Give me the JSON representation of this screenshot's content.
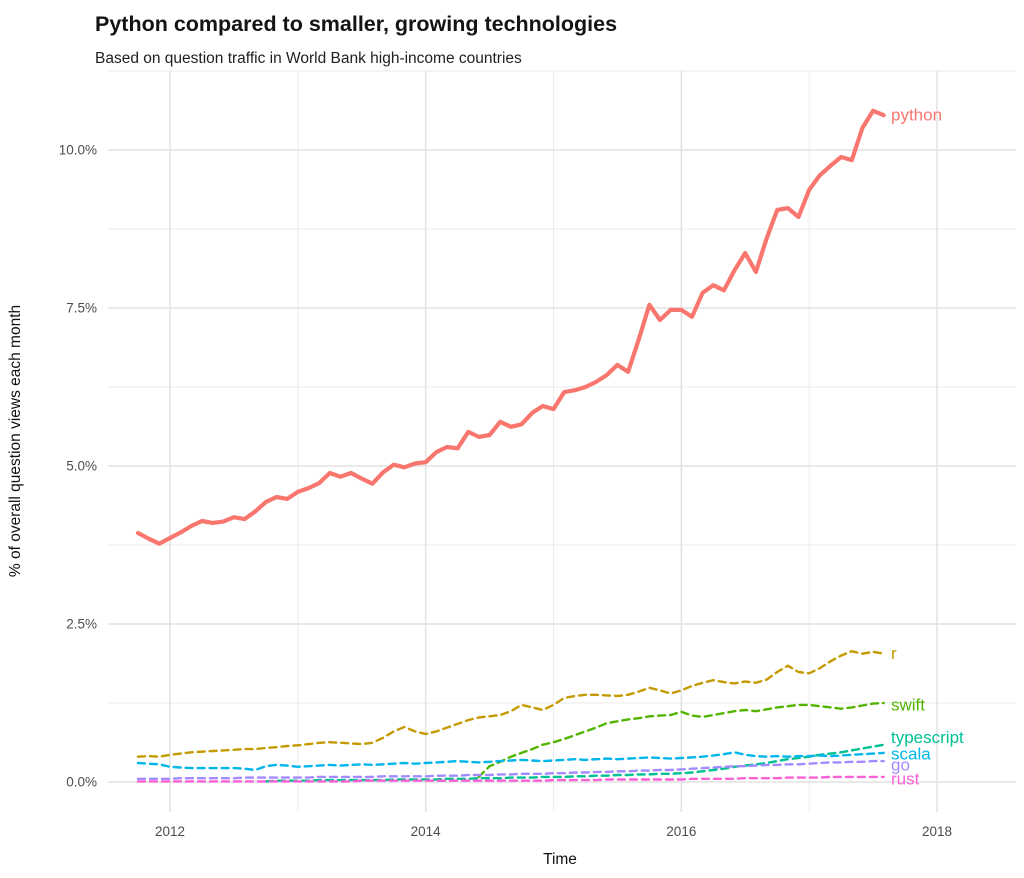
{
  "chart_data": {
    "type": "line",
    "title": "Python compared to smaller, growing technologies",
    "subtitle": "Based on question traffic in World Bank high-income countries",
    "xlabel": "Time",
    "ylabel": "% of overall question views each month",
    "grid": "major and minor gridlines, light gray on white",
    "legend": "direct line labels at right edge",
    "x_start_year": 2011.75,
    "x_step_years": 0.08333,
    "x_range": [
      2011.52,
      2018.62
    ],
    "y_range": [
      -0.5,
      11.25
    ],
    "x_axis": {
      "ticks": [
        {
          "label": "2012",
          "year": 2012
        },
        {
          "label": "2014",
          "year": 2014
        },
        {
          "label": "2016",
          "year": 2016
        },
        {
          "label": "2018",
          "year": 2018
        }
      ],
      "minor_years": [
        2013,
        2015,
        2017
      ]
    },
    "y_axis": {
      "ticks": [
        {
          "label": "0.0%",
          "value": 0
        },
        {
          "label": "2.5%",
          "value": 2.5
        },
        {
          "label": "5.0%",
          "value": 5
        },
        {
          "label": "7.5%",
          "value": 7.5
        },
        {
          "label": "10.0%",
          "value": 10
        }
      ],
      "minor_values": [
        1.25,
        3.75,
        6.25,
        8.75,
        11.25
      ]
    },
    "series": [
      {
        "name": "python",
        "color": "#F8766D",
        "style": "solid",
        "width": 4.2,
        "label_dy": 0,
        "values": [
          3.94,
          3.85,
          3.77,
          3.86,
          3.95,
          4.05,
          4.13,
          4.1,
          4.12,
          4.19,
          4.16,
          4.28,
          4.43,
          4.51,
          4.48,
          4.59,
          4.65,
          4.73,
          4.89,
          4.83,
          4.89,
          4.8,
          4.72,
          4.9,
          5.02,
          4.98,
          5.04,
          5.06,
          5.22,
          5.3,
          5.28,
          5.54,
          5.46,
          5.49,
          5.7,
          5.62,
          5.66,
          5.84,
          5.95,
          5.9,
          6.17,
          6.2,
          6.25,
          6.33,
          6.44,
          6.6,
          6.49,
          7.0,
          7.55,
          7.31,
          7.47,
          7.47,
          7.36,
          7.74,
          7.86,
          7.78,
          8.1,
          8.37,
          8.07,
          8.6,
          9.05,
          9.08,
          8.94,
          9.37,
          9.6,
          9.75,
          9.89,
          9.84,
          10.35,
          10.62,
          10.55
        ]
      },
      {
        "name": "r",
        "color": "#C49A00",
        "style": "dashed",
        "width": 2.4,
        "label_dy": 0,
        "values": [
          0.4,
          0.41,
          0.4,
          0.43,
          0.45,
          0.47,
          0.48,
          0.49,
          0.5,
          0.51,
          0.52,
          0.52,
          0.54,
          0.55,
          0.57,
          0.58,
          0.6,
          0.62,
          0.63,
          0.62,
          0.61,
          0.6,
          0.62,
          0.7,
          0.8,
          0.87,
          0.8,
          0.76,
          0.8,
          0.86,
          0.92,
          0.98,
          1.02,
          1.04,
          1.06,
          1.12,
          1.22,
          1.18,
          1.14,
          1.22,
          1.33,
          1.36,
          1.38,
          1.38,
          1.37,
          1.36,
          1.38,
          1.43,
          1.49,
          1.45,
          1.4,
          1.45,
          1.52,
          1.57,
          1.61,
          1.58,
          1.56,
          1.59,
          1.57,
          1.62,
          1.74,
          1.84,
          1.74,
          1.72,
          1.8,
          1.91,
          2.0,
          2.07,
          2.03,
          2.06,
          2.03
        ]
      },
      {
        "name": "swift",
        "color": "#53B400",
        "style": "dashed",
        "width": 2.4,
        "label_dy": 2,
        "values": [
          null,
          null,
          null,
          null,
          null,
          null,
          null,
          null,
          null,
          null,
          null,
          null,
          null,
          null,
          null,
          null,
          null,
          null,
          null,
          null,
          null,
          null,
          null,
          null,
          null,
          null,
          null,
          null,
          null,
          null,
          null,
          null,
          0.08,
          0.25,
          0.32,
          0.4,
          0.46,
          0.52,
          0.59,
          0.63,
          0.68,
          0.74,
          0.8,
          0.86,
          0.93,
          0.96,
          0.99,
          1.01,
          1.04,
          1.05,
          1.06,
          1.11,
          1.05,
          1.03,
          1.06,
          1.09,
          1.12,
          1.14,
          1.12,
          1.15,
          1.18,
          1.2,
          1.22,
          1.22,
          1.2,
          1.18,
          1.16,
          1.18,
          1.21,
          1.24,
          1.25
        ]
      },
      {
        "name": "typescript",
        "color": "#00C094",
        "style": "dashed",
        "width": 2.4,
        "label_dy": -7,
        "values": [
          null,
          null,
          null,
          null,
          null,
          null,
          null,
          null,
          null,
          null,
          null,
          null,
          0.01,
          0.02,
          0.02,
          0.02,
          0.02,
          0.03,
          0.03,
          0.03,
          0.03,
          0.03,
          0.03,
          0.03,
          0.04,
          0.04,
          0.04,
          0.04,
          0.04,
          0.05,
          0.05,
          0.05,
          0.06,
          0.06,
          0.06,
          0.07,
          0.07,
          0.07,
          0.08,
          0.08,
          0.08,
          0.09,
          0.09,
          0.1,
          0.1,
          0.11,
          0.11,
          0.12,
          0.12,
          0.13,
          0.13,
          0.14,
          0.15,
          0.17,
          0.19,
          0.21,
          0.24,
          0.26,
          0.28,
          0.3,
          0.33,
          0.36,
          0.38,
          0.4,
          0.43,
          0.45,
          0.47,
          0.5,
          0.53,
          0.56,
          0.59
        ]
      },
      {
        "name": "scala",
        "color": "#00B6EB",
        "style": "dashed",
        "width": 2.4,
        "label_dy": 1,
        "values": [
          0.3,
          0.29,
          0.28,
          0.24,
          0.23,
          0.22,
          0.22,
          0.22,
          0.22,
          0.22,
          0.21,
          0.19,
          0.25,
          0.27,
          0.26,
          0.24,
          0.25,
          0.26,
          0.27,
          0.26,
          0.27,
          0.28,
          0.27,
          0.28,
          0.29,
          0.3,
          0.29,
          0.3,
          0.31,
          0.32,
          0.33,
          0.32,
          0.31,
          0.32,
          0.33,
          0.34,
          0.35,
          0.34,
          0.33,
          0.34,
          0.35,
          0.36,
          0.35,
          0.36,
          0.37,
          0.36,
          0.37,
          0.38,
          0.39,
          0.38,
          0.37,
          0.38,
          0.39,
          0.4,
          0.42,
          0.44,
          0.47,
          0.43,
          0.41,
          0.4,
          0.41,
          0.4,
          0.41,
          0.41,
          0.42,
          0.41,
          0.42,
          0.43,
          0.44,
          0.45,
          0.46
        ]
      },
      {
        "name": "go",
        "color": "#A58AFF",
        "style": "dashed",
        "width": 2.4,
        "label_dy": 4,
        "values": [
          0.05,
          0.05,
          0.05,
          0.05,
          0.06,
          0.06,
          0.06,
          0.06,
          0.06,
          0.06,
          0.07,
          0.07,
          0.07,
          0.07,
          0.07,
          0.07,
          0.07,
          0.08,
          0.08,
          0.08,
          0.08,
          0.08,
          0.08,
          0.09,
          0.09,
          0.09,
          0.09,
          0.09,
          0.1,
          0.1,
          0.1,
          0.11,
          0.11,
          0.11,
          0.12,
          0.12,
          0.13,
          0.13,
          0.13,
          0.14,
          0.14,
          0.15,
          0.15,
          0.16,
          0.16,
          0.17,
          0.17,
          0.18,
          0.18,
          0.19,
          0.19,
          0.2,
          0.21,
          0.22,
          0.23,
          0.24,
          0.25,
          0.25,
          0.26,
          0.27,
          0.27,
          0.28,
          0.28,
          0.29,
          0.3,
          0.31,
          0.31,
          0.32,
          0.32,
          0.33,
          0.33
        ]
      },
      {
        "name": "rust",
        "color": "#FB61D7",
        "style": "dashed",
        "width": 2.4,
        "label_dy": 2,
        "values": [
          0.01,
          0.01,
          0.01,
          0.01,
          0.01,
          0.01,
          0.01,
          0.01,
          0.01,
          0.01,
          0.01,
          0.01,
          0.01,
          0.01,
          0.01,
          0.01,
          0.01,
          0.01,
          0.01,
          0.01,
          0.01,
          0.02,
          0.02,
          0.02,
          0.02,
          0.02,
          0.02,
          0.02,
          0.02,
          0.02,
          0.02,
          0.02,
          0.02,
          0.02,
          0.02,
          0.02,
          0.02,
          0.02,
          0.02,
          0.03,
          0.03,
          0.03,
          0.03,
          0.03,
          0.04,
          0.04,
          0.04,
          0.04,
          0.04,
          0.04,
          0.04,
          0.04,
          0.05,
          0.05,
          0.05,
          0.05,
          0.05,
          0.06,
          0.06,
          0.06,
          0.06,
          0.07,
          0.07,
          0.07,
          0.07,
          0.08,
          0.08,
          0.08,
          0.08,
          0.08,
          0.08
        ]
      }
    ],
    "colors": {
      "python": "#F8766D",
      "r": "#C49A00",
      "swift": "#53B400",
      "typescript": "#00C094",
      "scala": "#00B6EB",
      "go": "#A58AFF",
      "rust": "#FB61D7",
      "grid_major": "#E2E2E2",
      "grid_minor": "#EBEBEB",
      "tick_text": "#4D4D4D"
    }
  }
}
